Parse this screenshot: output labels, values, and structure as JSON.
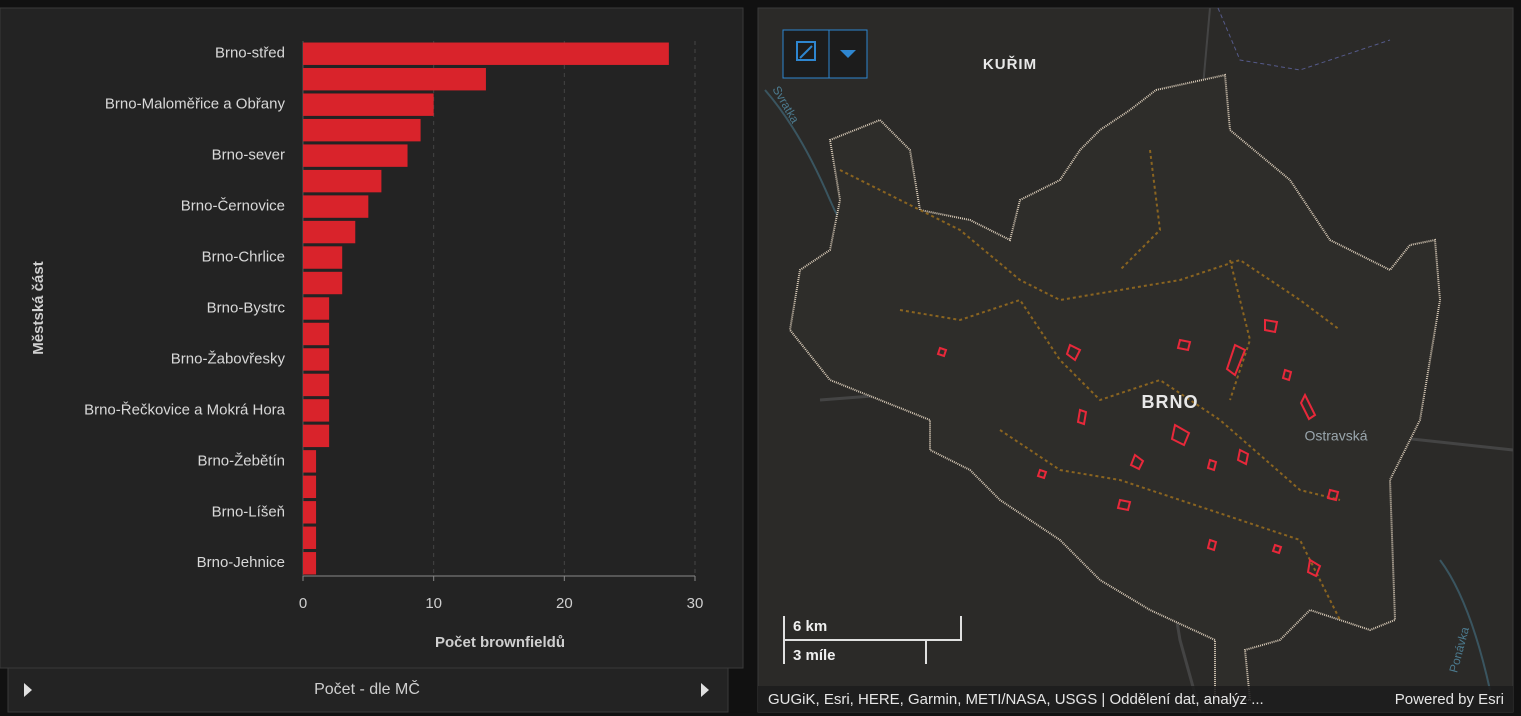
{
  "chart_data": {
    "type": "bar",
    "orientation": "horizontal",
    "xlabel": "Počet brownfieldů",
    "ylabel": "Městská část",
    "categories": [
      "Brno-střed",
      null,
      "Brno-Maloměřice a Obřany",
      null,
      "Brno-sever",
      null,
      "Brno-Černovice",
      null,
      "Brno-Chrlice",
      null,
      "Brno-Bystrc",
      null,
      "Brno-Žabovřesky",
      null,
      "Brno-Řečkovice a Mokrá Hora",
      null,
      "Brno-Žebětín",
      null,
      "Brno-Líšeň",
      null,
      "Brno-Jehnice"
    ],
    "values": [
      28,
      14,
      10,
      9,
      8,
      6,
      5,
      4,
      3,
      3,
      2,
      2,
      2,
      2,
      2,
      2,
      1,
      1,
      1,
      1,
      1
    ],
    "color": "#d9232b",
    "xlim": [
      0,
      30
    ],
    "xticks": [
      0,
      10,
      20,
      30
    ],
    "grid": true
  },
  "panel": {
    "footer_title": "Počet - dle MČ"
  },
  "map": {
    "places": [
      "KUŘIM",
      "BRNO"
    ],
    "roads": [
      "Ostravská"
    ],
    "rivers": [
      "Svratka",
      "Ponávka"
    ],
    "scale": [
      "6 km",
      "3 míle"
    ],
    "attribution": "GUGiK, Esri, HERE, Garmin, METI/NASA, USGS | Oddělení dat, analýz ...",
    "powered": "Powered by Esri"
  }
}
